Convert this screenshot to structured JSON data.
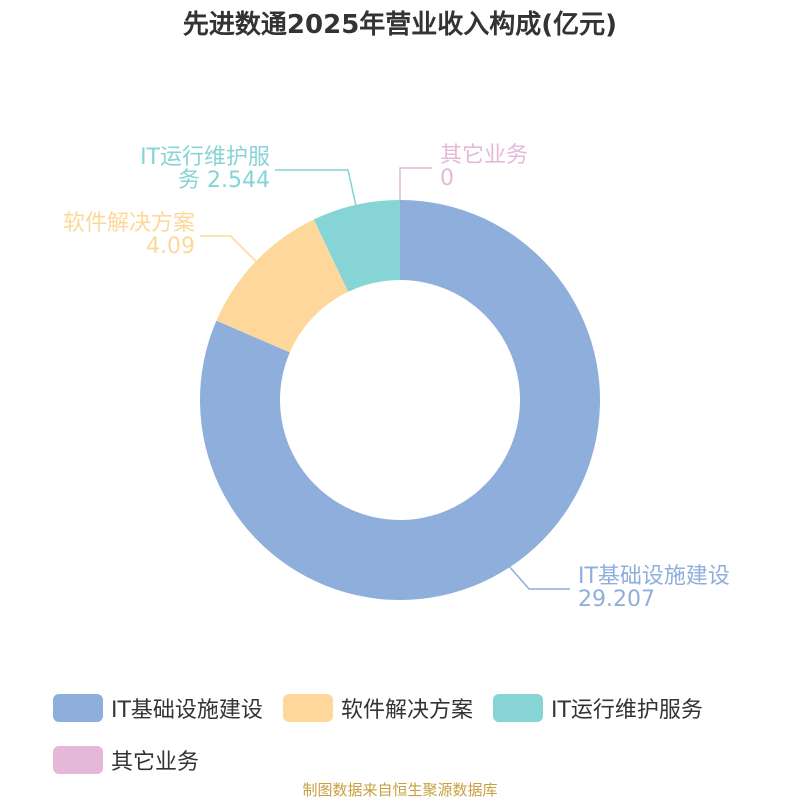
{
  "chart_data": {
    "type": "donut",
    "title": "先进数通2025年营业收入构成(亿元)",
    "categories": [
      "IT基础设施建设",
      "软件解决方案",
      "IT运行维护服务",
      "其它业务"
    ],
    "values": [
      29.207,
      4.09,
      2.544,
      0
    ],
    "colors": [
      "#8eaedb",
      "#fdd89a",
      "#86d4d6",
      "#e6b8d8"
    ],
    "legend": "bottom",
    "source": "制图数据来自恒生聚源数据库"
  }
}
